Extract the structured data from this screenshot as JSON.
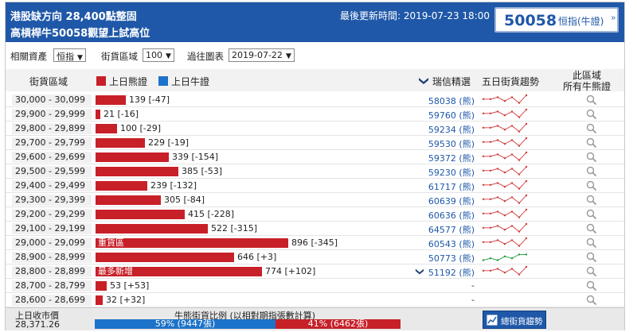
{
  "header": {
    "title_line1": "港股缺方向 28,400點整固",
    "title_line2": "高槓桿牛50058觀望上試高位",
    "updated_label": "最後更新時間: 2019-07-23 18:00",
    "code_button": {
      "code": "50058",
      "label": "恒指(牛證)",
      "arrow": "»"
    }
  },
  "filters": {
    "asset_label": "相關資產",
    "asset_value": "恒指",
    "range_label": "街貨區域",
    "range_value": "100",
    "date_label": "過往圖表",
    "date_value": "2019-07-22"
  },
  "columns": {
    "range": "街貨區域",
    "bear_legend": "上日熊證",
    "bull_legend": "上日牛證",
    "ubs": "瑞信精選",
    "trend": "五日街貨趨勢",
    "all_line1": "此區域",
    "all_line2": "所有牛熊證"
  },
  "colors": {
    "bear": "#c82028",
    "bull": "#1d73c9",
    "header": "#1f58a8"
  },
  "rows": [
    {
      "range": "30,000 - 30,099",
      "value": "139 [-47]",
      "bar": 139,
      "tag": "",
      "warrant": "58038 (熊)",
      "ubs_icon": false,
      "spark": [
        3,
        3,
        4,
        2,
        4,
        1,
        5
      ],
      "spark_color": "red"
    },
    {
      "range": "29,900 - 29,999",
      "value": "21 [-16]",
      "bar": 21,
      "tag": "",
      "warrant": "59760 (熊)",
      "ubs_icon": false,
      "spark": [
        3,
        3,
        4,
        2,
        4,
        1,
        5
      ],
      "spark_color": "red"
    },
    {
      "range": "29,800 - 29,899",
      "value": "100 [-29]",
      "bar": 100,
      "tag": "",
      "warrant": "59234 (熊)",
      "ubs_icon": false,
      "spark": [
        3,
        3,
        4,
        2,
        4,
        1,
        5
      ],
      "spark_color": "red"
    },
    {
      "range": "29,700 - 29,799",
      "value": "229 [-19]",
      "bar": 229,
      "tag": "",
      "warrant": "59530 (熊)",
      "ubs_icon": false,
      "spark": [
        3,
        3,
        4,
        2,
        4,
        1,
        5
      ],
      "spark_color": "red"
    },
    {
      "range": "29,600 - 29,699",
      "value": "339 [-154]",
      "bar": 339,
      "tag": "",
      "warrant": "59372 (熊)",
      "ubs_icon": false,
      "spark": [
        3,
        3,
        4,
        2,
        4,
        1,
        5
      ],
      "spark_color": "red"
    },
    {
      "range": "29,500 - 29,599",
      "value": "385 [-53]",
      "bar": 385,
      "tag": "",
      "warrant": "59230 (熊)",
      "ubs_icon": false,
      "spark": [
        3,
        3,
        4,
        2,
        4,
        1,
        5
      ],
      "spark_color": "red"
    },
    {
      "range": "29,400 - 29,499",
      "value": "239 [-132]",
      "bar": 239,
      "tag": "",
      "warrant": "61717 (熊)",
      "ubs_icon": false,
      "spark": [
        3,
        3,
        4,
        2,
        4,
        1,
        5
      ],
      "spark_color": "red"
    },
    {
      "range": "29,300 - 29,399",
      "value": "305 [-84]",
      "bar": 305,
      "tag": "",
      "warrant": "60639 (熊)",
      "ubs_icon": false,
      "spark": [
        3,
        3,
        4,
        2,
        4,
        1,
        5
      ],
      "spark_color": "red"
    },
    {
      "range": "29,200 - 29,299",
      "value": "415 [-228]",
      "bar": 415,
      "tag": "",
      "warrant": "60636 (熊)",
      "ubs_icon": false,
      "spark": [
        3,
        3,
        4,
        2,
        4,
        1,
        5
      ],
      "spark_color": "red"
    },
    {
      "range": "29,100 - 29,199",
      "value": "522 [-315]",
      "bar": 522,
      "tag": "",
      "warrant": "64577 (熊)",
      "ubs_icon": false,
      "spark": [
        3,
        3,
        4,
        2,
        4,
        1,
        5
      ],
      "spark_color": "red"
    },
    {
      "range": "29,000 - 29,099",
      "value": "896 [-345]",
      "bar": 896,
      "tag": "重貨區",
      "warrant": "60543 (熊)",
      "ubs_icon": false,
      "spark": [
        3,
        3,
        4,
        2,
        4,
        1,
        5
      ],
      "spark_color": "red"
    },
    {
      "range": "28,900 - 28,999",
      "value": "646 [+3]",
      "bar": 646,
      "tag": "",
      "warrant": "50773 (熊)",
      "ubs_icon": false,
      "spark": [
        1,
        2,
        1,
        3,
        2,
        4,
        4
      ],
      "spark_color": "green"
    },
    {
      "range": "28,800 - 28,899",
      "value": "774 [+102]",
      "bar": 774,
      "tag": "最多新增",
      "warrant": "51192 (熊)",
      "ubs_icon": true,
      "spark": [
        3,
        3,
        4,
        2,
        4,
        1,
        5
      ],
      "spark_color": "red"
    },
    {
      "range": "28,700 - 28,799",
      "value": "53 [+53]",
      "bar": 53,
      "tag": "",
      "warrant": "-",
      "ubs_icon": false,
      "spark": [],
      "spark_color": "red"
    },
    {
      "range": "28,600 - 28,699",
      "value": "32 [+32]",
      "bar": 32,
      "tag": "",
      "warrant": "-",
      "ubs_icon": false,
      "spark": [],
      "spark_color": "red"
    }
  ],
  "bar_max": 1000,
  "footer": {
    "prev_close_label": "上日收市價",
    "prev_close_value": "28,371.26",
    "ratio_title": "牛熊街貨比例 (以相對期指張數計算)",
    "bull_pct": 59,
    "bull_text": "59% (9447張)",
    "bear_pct": 41,
    "bear_text": "41% (6462張)",
    "trend_button": "總街貨趨勢"
  }
}
